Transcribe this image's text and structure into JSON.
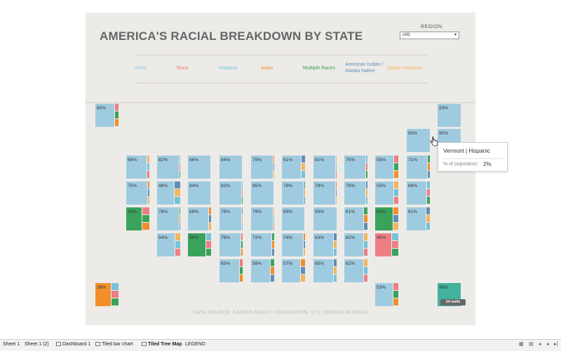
{
  "dashboard": {
    "title": "AMERICA'S RACIAL BREAKDOWN BY STATE",
    "region_label": "REGION",
    "region_value": "(All)",
    "source": "DATA SOURCE: KAISER FAMILY FOUNDATION, U.S. CENSUS BUREAU",
    "nulls": "14 nulls"
  },
  "legend": [
    {
      "label": "White",
      "color": "#9fcbe0"
    },
    {
      "label": "Black",
      "color": "#ec7f84"
    },
    {
      "label": "Hispanic",
      "color": "#78c2d9"
    },
    {
      "label": "Asian",
      "color": "#f28e2b"
    },
    {
      "label": "Multiple Races",
      "color": "#3aa35b"
    },
    {
      "label": "American Indian /\nAlaska Native",
      "color": "#5f8fb8"
    },
    {
      "label": "Native Hawaiian",
      "color": "#f3b560"
    }
  ],
  "tiles": [
    "60%",
    "93%",
    "93%",
    "90%",
    "68%",
    "82%",
    "86%",
    "84%",
    "79%",
    "61%",
    "81%",
    "75%",
    "55%",
    "71%",
    "75%",
    "48%",
    "84%",
    "82%",
    "85%",
    "79%",
    "79%",
    "76%",
    "55%",
    "66%",
    "40%",
    "78%",
    "68%",
    "79%",
    "79%",
    "85%",
    "93%",
    "61%",
    "50%",
    "61%",
    "54%",
    "50%",
    "76%",
    "72%",
    "74%",
    "63%",
    "62%",
    "45%",
    "65%",
    "59%",
    "57%",
    "65%",
    "62%",
    "39%",
    "53%",
    "98%"
  ],
  "tooltip": {
    "title": "Vermont | Hispanic",
    "label": "% of population:",
    "value": "2%"
  },
  "tabs": [
    "Sheet 1",
    "Sheet 1 (2)",
    "Dashboard 1",
    "Tiled  bar chart",
    "Tiled Tree Map",
    "LEGEND"
  ]
}
